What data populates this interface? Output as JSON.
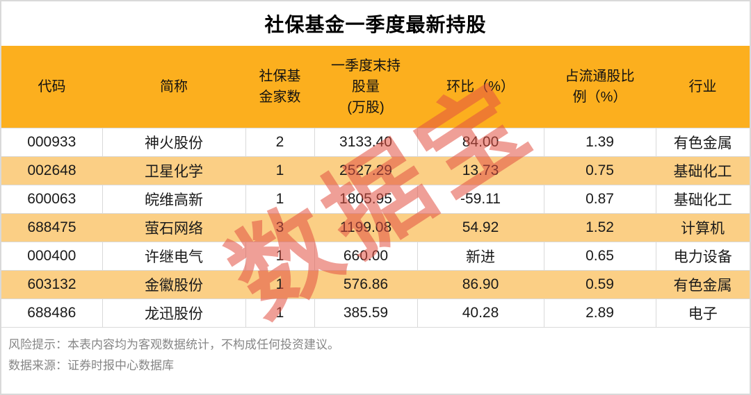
{
  "title": "社保基金一季度最新持股",
  "watermark": "数据宝",
  "colors": {
    "header_bg": "#fcaf1e",
    "stripe_bg": "#fbcf85",
    "watermark_red": "#e15041",
    "border_gray": "#d9d9d9",
    "footer_text": "#868686"
  },
  "table": {
    "headers": [
      "代码",
      "简称",
      "社保基\n金家数",
      "一季度末持\n股量\n(万股)",
      "环比（%）",
      "占流通股比\n例（%）",
      "行业"
    ],
    "rows": [
      [
        "000933",
        "神火股份",
        "2",
        "3133.40",
        "84.00",
        "1.39",
        "有色金属"
      ],
      [
        "002648",
        "卫星化学",
        "1",
        "2527.29",
        "13.73",
        "0.75",
        "基础化工"
      ],
      [
        "600063",
        "皖维高新",
        "1",
        "1805.95",
        "-59.11",
        "0.87",
        "基础化工"
      ],
      [
        "688475",
        "萤石网络",
        "3",
        "1199.08",
        "54.92",
        "1.52",
        "计算机"
      ],
      [
        "000400",
        "许继电气",
        "1",
        "660.00",
        "新进",
        "0.65",
        "电力设备"
      ],
      [
        "603132",
        "金徽股份",
        "1",
        "576.86",
        "86.90",
        "0.59",
        "有色金属"
      ],
      [
        "688486",
        "龙迅股份",
        "1",
        "385.59",
        "40.28",
        "2.89",
        "电子"
      ]
    ]
  },
  "footer": {
    "risk": "风险提示：本表内容均为客观数据统计，不构成任何投资建议。",
    "source": "数据来源：证券时报中心数据库"
  }
}
